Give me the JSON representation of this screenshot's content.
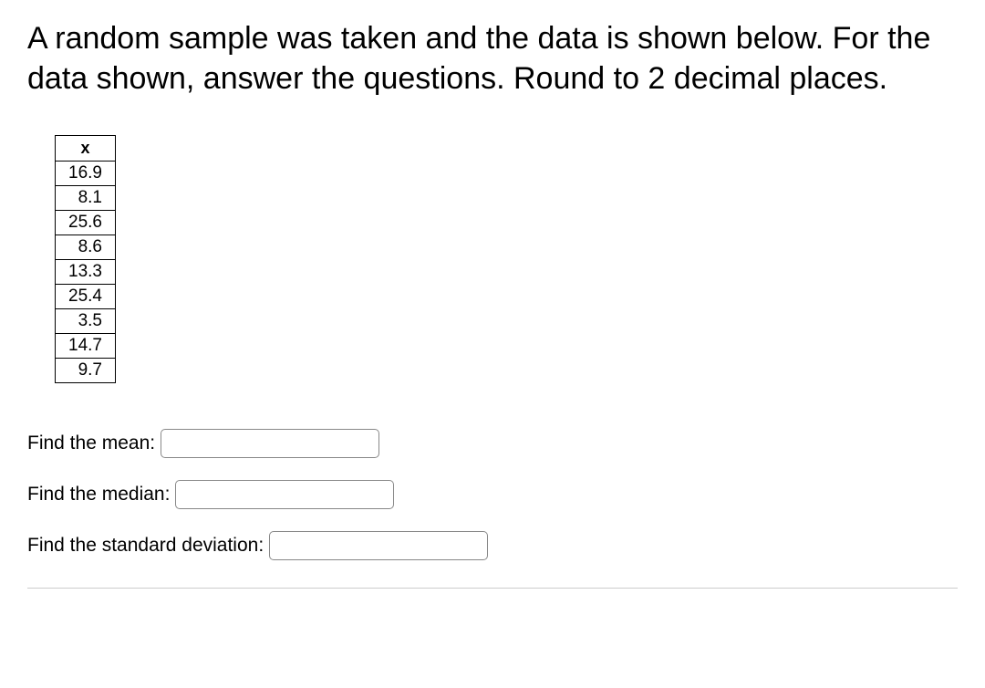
{
  "question": {
    "text": "A random sample was taken and the data is shown below. For the data shown, answer the questions. Round to 2 decimal places."
  },
  "table": {
    "header": "x",
    "rows": [
      "16.9",
      "8.1",
      "25.6",
      "8.6",
      "13.3",
      "25.4",
      "3.5",
      "14.7",
      "9.7"
    ],
    "header_fontsize": 18,
    "cell_fontsize": 19,
    "border_color": "#000000",
    "background_color": "#ffffff"
  },
  "prompts": {
    "mean": "Find the mean:",
    "median": "Find the median:",
    "stddev": "Find the standard deviation:"
  },
  "inputs": {
    "mean_value": "",
    "median_value": "",
    "stddev_value": "",
    "input_width": 240,
    "input_height": 32,
    "border_color": "#888888",
    "border_radius": 5
  },
  "styling": {
    "question_fontsize": 34,
    "prompt_fontsize": 21,
    "text_color": "#000000",
    "background_color": "#ffffff"
  }
}
